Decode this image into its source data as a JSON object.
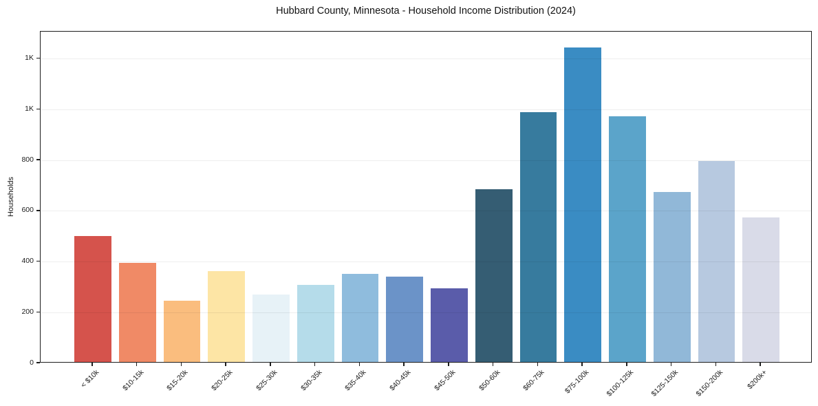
{
  "header": {
    "title": "Hubbard County, Minnesota - Household Income Distribution (2024)"
  },
  "chart_data": {
    "type": "bar",
    "title": "Hubbard County, Minnesota - Household Income Distribution (2024)",
    "xlabel": "",
    "ylabel": "Households",
    "categories": [
      "< $10k",
      "$10-15k",
      "$15-20k",
      "$20-25k",
      "$25-30k",
      "$30-35k",
      "$35-40k",
      "$40-45k",
      "$45-50k",
      "$50-60k",
      "$60-75k",
      "$75-100k",
      "$100-125k",
      "$125-150k",
      "$150-200k",
      "$200k+"
    ],
    "values": [
      499,
      393,
      243,
      360,
      266,
      304,
      350,
      338,
      291,
      683,
      990,
      1246,
      974,
      673,
      795,
      573
    ],
    "bar_colors": [
      "#d5534c",
      "#f08a66",
      "#fabd7e",
      "#fde5a5",
      "#e7f2f7",
      "#b5dcea",
      "#8fbcdd",
      "#6b93c8",
      "#5a5caa",
      "#355d73",
      "#377b9e",
      "#3a8cc3",
      "#5ba4ca",
      "#91b8d8",
      "#b7c9e0",
      "#d9dbe8"
    ],
    "ylim": [
      0,
      1308
    ],
    "yticks": [
      {
        "value": 0,
        "label": "0"
      },
      {
        "value": 200,
        "label": "200"
      },
      {
        "value": 400,
        "label": "400"
      },
      {
        "value": 600,
        "label": "600"
      },
      {
        "value": 800,
        "label": "800"
      },
      {
        "value": 1000,
        "label": "1K"
      },
      {
        "value": 1200,
        "label": "1K"
      }
    ],
    "grid": "horizontal",
    "legend": "none",
    "spine_color": "#1c1c1c",
    "background": "#ffffff"
  }
}
